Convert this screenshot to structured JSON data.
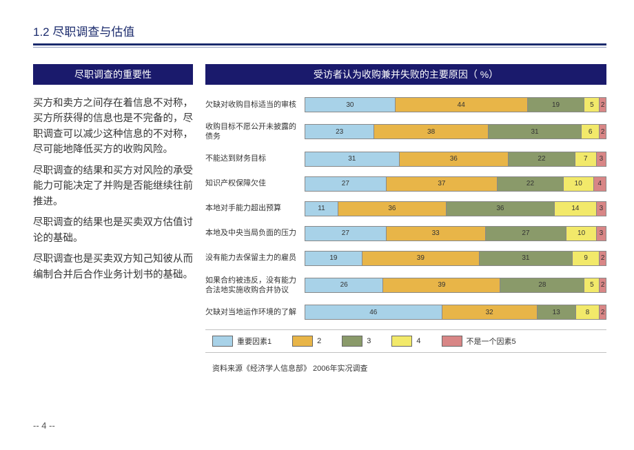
{
  "page": {
    "title": "1.2 尽职调查与估值",
    "page_number": "--  4  --",
    "colors": {
      "header_bg": "#1a1a6c",
      "title_color": "#1a2a6c",
      "text_color": "#333333"
    }
  },
  "left": {
    "header": "尽职调查的重要性",
    "paragraphs": [
      "买方和卖方之间存在着信息不对称，买方所获得的信息也是不完备的，尽职调查可以减少这种信息的不对称，尽可能地降低买方的收购风险。",
      "尽职调查的结果和买方对风险的承受能力可能决定了并购是否能继续往前推进。",
      "尽职调查的结果也是买卖双方估值讨论的基础。",
      "尽职调查也是买卖双方知己知彼从而编制合并后合作业务计划书的基础。"
    ]
  },
  "right": {
    "header": "受访者认为收购兼并失败的主要原因（ %）",
    "source": "资料来源《经济学人信息部》  2006年实况调查",
    "chart": {
      "type": "stacked-bar-horizontal",
      "colors": {
        "c1": "#a8d2e8",
        "c2": "#e8b548",
        "c3": "#8a9a6a",
        "c4": "#f2e96a",
        "c5": "#d88686"
      },
      "legend": [
        {
          "swatch": "c1",
          "label": "重要因素1"
        },
        {
          "swatch": "c2",
          "label": "2"
        },
        {
          "swatch": "c3",
          "label": "3"
        },
        {
          "swatch": "c4",
          "label": "4"
        },
        {
          "swatch": "c5",
          "label": "不是一个因素5"
        }
      ],
      "rows": [
        {
          "label": "欠缺对收购目标适当的审核",
          "values": [
            30,
            44,
            19,
            5,
            2
          ]
        },
        {
          "label": "收购目标不愿公开未披露的债务",
          "values": [
            23,
            38,
            31,
            6,
            2
          ]
        },
        {
          "label": "不能达到财务目标",
          "values": [
            31,
            36,
            22,
            7,
            3
          ]
        },
        {
          "label": "知识产权保障欠佳",
          "values": [
            27,
            37,
            22,
            10,
            4
          ]
        },
        {
          "label": "本地对手能力超出预算",
          "values": [
            11,
            36,
            36,
            14,
            3
          ]
        },
        {
          "label": "本地及中央当局负面的压力",
          "values": [
            27,
            33,
            27,
            10,
            3
          ]
        },
        {
          "label": "没有能力去保留主力的雇员",
          "values": [
            19,
            39,
            31,
            9,
            2
          ]
        },
        {
          "label": "如果合约被违反，没有能力合法地实施收购合并协议",
          "values": [
            26,
            39,
            28,
            5,
            2
          ]
        },
        {
          "label": "欠缺对当地运作环境的了解",
          "values": [
            46,
            32,
            13,
            8,
            2
          ]
        }
      ]
    }
  }
}
